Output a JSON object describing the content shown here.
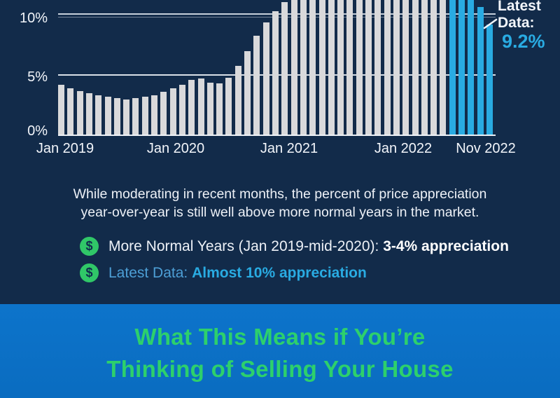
{
  "theme": {
    "background_navy": "#122B4A",
    "bar_gray": "#D9D9DB",
    "bar_highlight_blue": "#29ABE2",
    "text_white": "#F2F5FA",
    "latest_label_blue": "#4D9FD6",
    "latest_value_blue": "#29ABE2",
    "bullet_green": "#30C768",
    "banner_blue_top": "#0D74CB",
    "banner_blue_bottom": "#0A6CC0",
    "banner_green": "#2DD06C"
  },
  "chart_data": {
    "type": "bar",
    "title": "",
    "categories": [
      "Jan 2019",
      "Feb 2019",
      "Mar 2019",
      "Apr 2019",
      "May 2019",
      "Jun 2019",
      "Jul 2019",
      "Aug 2019",
      "Sep 2019",
      "Oct 2019",
      "Nov 2019",
      "Dec 2019",
      "Jan 2020",
      "Feb 2020",
      "Mar 2020",
      "Apr 2020",
      "May 2020",
      "Jun 2020",
      "Jul 2020",
      "Aug 2020",
      "Sep 2020",
      "Oct 2020",
      "Nov 2020",
      "Dec 2020",
      "Jan 2021",
      "Feb 2021",
      "Mar 2021",
      "Apr 2021",
      "May 2021",
      "Jun 2021",
      "Jul 2021",
      "Aug 2021",
      "Sep 2021",
      "Oct 2021",
      "Nov 2021",
      "Dec 2021",
      "Jan 2022",
      "Feb 2022",
      "Mar 2022",
      "Apr 2022",
      "May 2022",
      "Jun 2022",
      "Jul 2022",
      "Aug 2022",
      "Sep 2022",
      "Oct 2022",
      "Nov 2022"
    ],
    "values": [
      4.2,
      3.9,
      3.7,
      3.5,
      3.3,
      3.2,
      3.1,
      3.0,
      3.1,
      3.2,
      3.3,
      3.6,
      3.9,
      4.2,
      4.6,
      4.7,
      4.4,
      4.3,
      4.8,
      5.8,
      7.0,
      8.3,
      9.4,
      10.3,
      11.1,
      12.0,
      13.2,
      14.8,
      16.9,
      18.0,
      18.4,
      18.1,
      18.0,
      18.0,
      18.2,
      18.8,
      19.1,
      20.0,
      20.9,
      20.9,
      20.3,
      18.7,
      15.9,
      14.0,
      11.9,
      10.7,
      9.2
    ],
    "highlight_last_n": 5,
    "ylim_visible_percent": [
      0,
      11.3
    ],
    "gridlines_percent": [
      5,
      10
    ],
    "grid": "on",
    "y_tick_labels": [
      {
        "label": "0%",
        "percent": 0
      },
      {
        "label": "5%",
        "percent": 5
      },
      {
        "label": "10%",
        "percent": 10
      }
    ],
    "x_tick_labels": [
      {
        "label": "Jan 2019",
        "month_index": 0
      },
      {
        "label": "Jan 2020",
        "month_index": 12
      },
      {
        "label": "Jan 2021",
        "month_index": 24
      },
      {
        "label": "Jan 2022",
        "month_index": 36
      },
      {
        "label": "Nov 2022",
        "month_index": 46
      }
    ],
    "annotation": {
      "line1": "Latest",
      "line2": "Data:",
      "value": "9.2%"
    }
  },
  "paragraph": {
    "line1": "While moderating in recent months, the percent of price appreciation",
    "line2": "year-over-year is still well above more normal years in the market."
  },
  "bullets": [
    {
      "icon": "dollar-circle-icon",
      "symbol": "$",
      "text_regular": "More Normal Years (Jan 2019-mid-2020): ",
      "text_bold": "3-4% appreciation",
      "style": "white"
    },
    {
      "icon": "dollar-circle-icon",
      "symbol": "$",
      "text_regular": "Latest Data: ",
      "text_bold": "Almost 10% appreciation",
      "style": "blue"
    }
  ],
  "banner": {
    "heading_line1": "What This Means if You’re",
    "heading_line2": "Thinking of Selling Your House"
  }
}
